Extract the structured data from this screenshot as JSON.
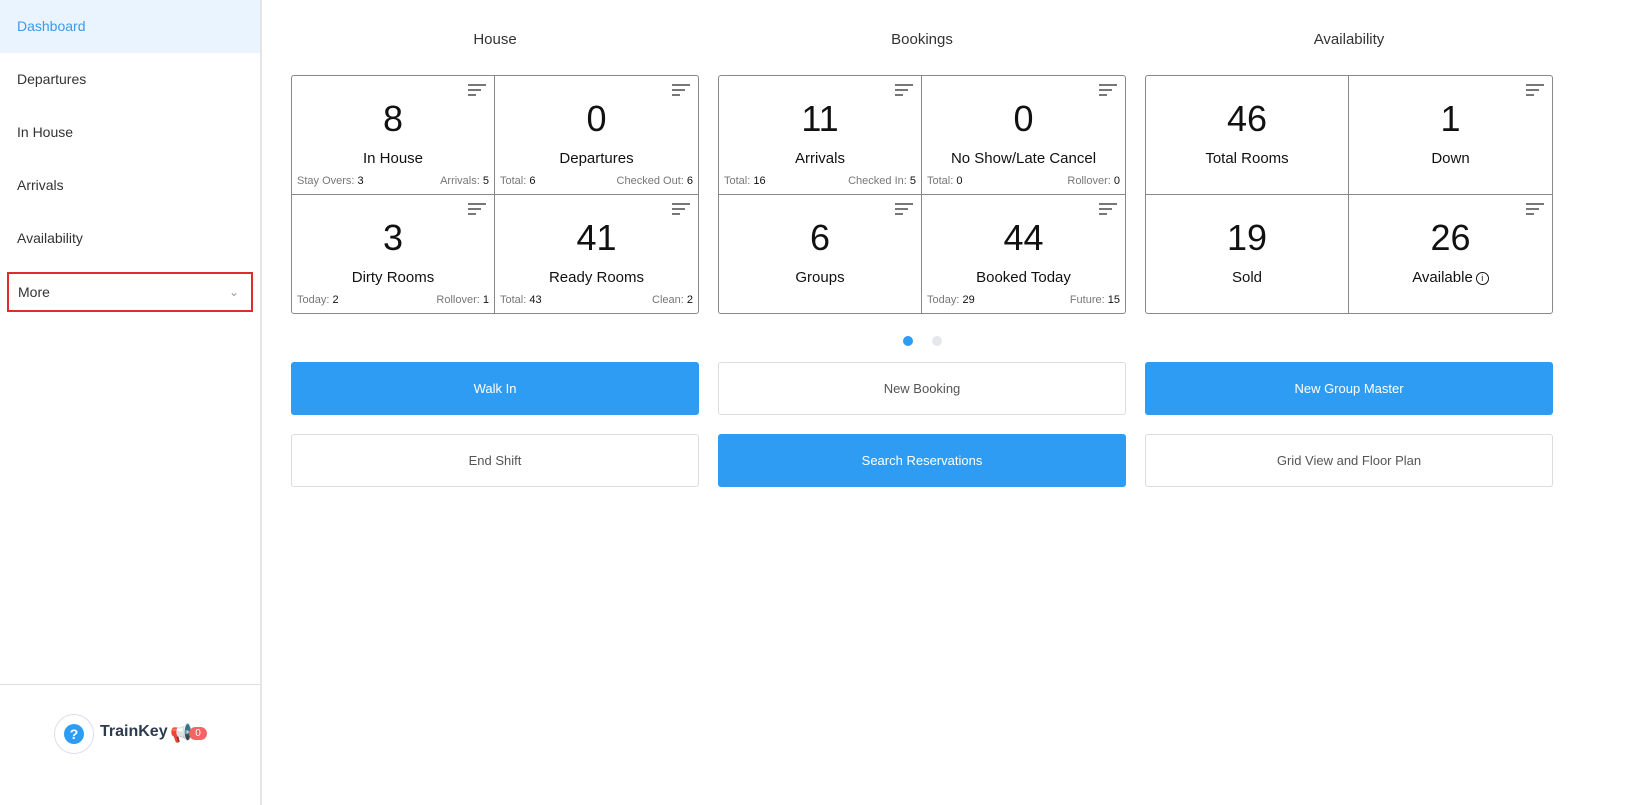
{
  "sidebar": {
    "items": [
      "Dashboard",
      "Departures",
      "In House",
      "Arrivals",
      "Availability"
    ],
    "more": "More",
    "footer": {
      "brand": "TrainKey",
      "notifications": "0"
    }
  },
  "sections": [
    {
      "title": "House",
      "cells": [
        {
          "value": "8",
          "label": "In House",
          "left_label": "Stay Overs:",
          "left_value": "3",
          "right_label": "Arrivals:",
          "right_value": "5"
        },
        {
          "value": "0",
          "label": "Departures",
          "left_label": "Total:",
          "left_value": "6",
          "right_label": "Checked Out:",
          "right_value": "6"
        },
        {
          "value": "3",
          "label": "Dirty Rooms",
          "left_label": "Today:",
          "left_value": "2",
          "right_label": "Rollover:",
          "right_value": "1"
        },
        {
          "value": "41",
          "label": "Ready Rooms",
          "left_label": "Total:",
          "left_value": "43",
          "right_label": "Clean:",
          "right_value": "2"
        }
      ]
    },
    {
      "title": "Bookings",
      "cells": [
        {
          "value": "11",
          "label": "Arrivals",
          "left_label": "Total:",
          "left_value": "16",
          "right_label": "Checked In:",
          "right_value": "5"
        },
        {
          "value": "0",
          "label": "No Show/Late Cancel",
          "left_label": "Total:",
          "left_value": "0",
          "right_label": "Rollover:",
          "right_value": "0"
        },
        {
          "value": "6",
          "label": "Groups"
        },
        {
          "value": "44",
          "label": "Booked Today",
          "left_label": "Today:",
          "left_value": "29",
          "right_label": "Future:",
          "right_value": "15"
        }
      ]
    },
    {
      "title": "Availability",
      "cells": [
        {
          "value": "46",
          "label": "Total Rooms"
        },
        {
          "value": "1",
          "label": "Down"
        },
        {
          "value": "19",
          "label": "Sold"
        },
        {
          "value": "26",
          "label": "Available"
        }
      ]
    }
  ],
  "carousel": {
    "pages": 2,
    "current": 1
  },
  "buttons": [
    "Walk In",
    "New Booking",
    "New Group Master",
    "End Shift",
    "Search Reservations",
    "Grid View and Floor Plan"
  ],
  "colors": {
    "accent": "#2f9cf4",
    "highlight": "#e02b2b"
  }
}
